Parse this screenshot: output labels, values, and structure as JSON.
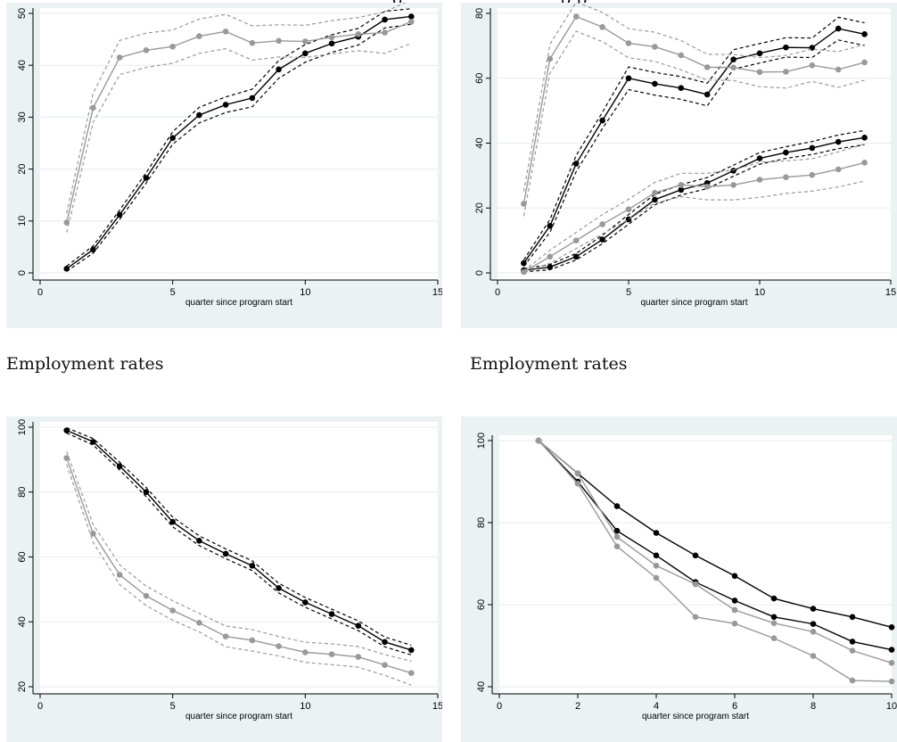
{
  "page": {
    "captions": [
      "Employment rates",
      "Employment rates"
    ],
    "top_fragment_left": "g",
    "top_fragment_right": "p p"
  },
  "colors": {
    "panel_bg": "#eaf2f3",
    "black_series": "#000000",
    "gray_series": "#999999"
  },
  "chart_data": [
    {
      "type": "line",
      "xlabel": "quarter since program start",
      "xlim": [
        0,
        15
      ],
      "ylim": [
        0,
        50
      ],
      "xticks": [
        0,
        5,
        10,
        15
      ],
      "yticks": [
        0,
        10,
        20,
        30,
        40,
        50
      ],
      "grid": true,
      "legend": "none",
      "x": [
        1,
        2,
        3,
        4,
        5,
        6,
        7,
        8,
        9,
        10,
        11,
        12,
        13,
        14
      ],
      "series": [
        {
          "color": "black",
          "markers": true,
          "ci": true,
          "values": [
            0.8,
            4.5,
            11.2,
            18.3,
            26,
            30.4,
            32.4,
            33.7,
            39.2,
            42.3,
            44.2,
            45.5,
            48.8,
            49.4
          ],
          "lower": [
            0.3,
            3.8,
            10.3,
            17.3,
            24.8,
            28.9,
            30.9,
            32,
            37.5,
            40.6,
            42.5,
            43.9,
            47.2,
            47.9
          ],
          "upper": [
            1.3,
            5.2,
            12.1,
            19.3,
            27.2,
            31.9,
            33.9,
            35.4,
            40.9,
            44,
            45.9,
            47.1,
            50.4,
            50.9
          ]
        },
        {
          "color": "gray",
          "markers": true,
          "ci": true,
          "values": [
            9.7,
            31.8,
            41.5,
            42.9,
            43.6,
            45.6,
            46.5,
            44.3,
            44.7,
            44.6,
            45.4,
            46.0,
            46.3,
            48.4
          ],
          "lower": [
            7.8,
            29,
            38.2,
            39.6,
            40.4,
            42.3,
            43.2,
            41.0,
            41.6,
            41.5,
            42.2,
            42.8,
            42.3,
            44.2
          ],
          "upper": [
            11.5,
            34.6,
            44.8,
            46.2,
            46.8,
            48.9,
            49.8,
            47.6,
            47.8,
            47.7,
            48.6,
            49.2,
            50.3,
            52.6
          ]
        }
      ]
    },
    {
      "type": "line",
      "xlabel": "quarter since program start",
      "xlim": [
        0,
        15
      ],
      "ylim": [
        0,
        80
      ],
      "xticks": [
        0,
        5,
        10,
        15
      ],
      "yticks": [
        0,
        20,
        40,
        60,
        80
      ],
      "grid": true,
      "legend": "none",
      "x": [
        1,
        2,
        3,
        4,
        5,
        6,
        7,
        8,
        9,
        10,
        11,
        12,
        13,
        14
      ],
      "series": [
        {
          "color": "black",
          "markers": true,
          "ci": true,
          "values": [
            3,
            14.5,
            33.7,
            47,
            60,
            58.3,
            57,
            55,
            65.8,
            67.7,
            69.5,
            69.4,
            75.3,
            73.6
          ],
          "lower": [
            2,
            12.5,
            31.2,
            44.5,
            56.5,
            54.8,
            53.5,
            51.5,
            62.8,
            64.7,
            66.5,
            66.4,
            71.8,
            70.1
          ],
          "upper": [
            4,
            16.5,
            36.2,
            49.5,
            63.5,
            61.8,
            60.5,
            58.5,
            68.8,
            70.7,
            72.5,
            72.4,
            78.8,
            77.1
          ]
        },
        {
          "color": "gray",
          "markers": true,
          "ci": true,
          "values": [
            21.3,
            66,
            79,
            75.8,
            70.8,
            69.7,
            67.1,
            63.4,
            63.3,
            61.9,
            62,
            64,
            62.7,
            64.9
          ],
          "lower": [
            17.5,
            61.5,
            74.5,
            71.3,
            66.3,
            65.2,
            62.6,
            59.4,
            59.3,
            57.4,
            57,
            59,
            57.2,
            59.4
          ],
          "upper": [
            25.1,
            70.5,
            83.5,
            80.3,
            75.3,
            74.2,
            71.6,
            67.4,
            67.3,
            66.4,
            67,
            69,
            68.2,
            70.4
          ]
        },
        {
          "color": "black",
          "markers": true,
          "ci": true,
          "values": [
            0.8,
            1.8,
            5,
            10.3,
            16.5,
            22.6,
            25.6,
            27.7,
            31.5,
            35.3,
            37.1,
            38.5,
            40.4,
            41.7
          ],
          "lower": [
            0.3,
            1,
            4,
            9,
            15,
            21,
            24,
            26,
            29.8,
            33.5,
            35.3,
            36.5,
            38.3,
            39.5
          ],
          "upper": [
            1.3,
            2.6,
            6,
            11.6,
            18,
            24.2,
            27.2,
            29.4,
            33.2,
            37.1,
            38.9,
            40.5,
            42.5,
            43.9
          ]
        },
        {
          "color": "gray",
          "markers": true,
          "ci": true,
          "values": [
            0.3,
            5,
            10,
            15,
            19.6,
            24.7,
            27.1,
            26.6,
            27.1,
            28.7,
            29.5,
            30.2,
            31.9,
            34
          ],
          "lower": [
            0,
            3,
            7.5,
            12,
            16.5,
            21.5,
            23.5,
            22.5,
            22.5,
            23.3,
            24.5,
            25.2,
            26.5,
            28.3
          ],
          "upper": [
            0.6,
            7,
            12.5,
            18,
            22.7,
            27.9,
            30.7,
            30.7,
            31.7,
            34.1,
            34.5,
            35.2,
            37.3,
            39.7
          ]
        }
      ]
    },
    {
      "type": "line",
      "xlabel": "quarter since program start",
      "xlim": [
        0,
        15
      ],
      "ylim": [
        20,
        100
      ],
      "xticks": [
        0,
        5,
        10,
        15
      ],
      "yticks": [
        20,
        40,
        60,
        80,
        100
      ],
      "grid": true,
      "legend": "none",
      "x": [
        1,
        2,
        3,
        4,
        5,
        6,
        7,
        8,
        9,
        10,
        11,
        12,
        13,
        14
      ],
      "series": [
        {
          "color": "black",
          "markers": true,
          "ci": true,
          "values": [
            99,
            95.5,
            88,
            80,
            70.8,
            65,
            61,
            57.3,
            50.4,
            46,
            42.4,
            38.8,
            33.8,
            31.3
          ],
          "lower": [
            98.2,
            94.5,
            86.8,
            78.6,
            69.3,
            63.5,
            59.5,
            55.8,
            48.9,
            44.5,
            40.9,
            37.3,
            32.3,
            29.8
          ],
          "upper": [
            99.8,
            96.5,
            89.2,
            81.4,
            72.3,
            66.5,
            62.5,
            58.8,
            51.9,
            47.5,
            43.9,
            40.3,
            35.3,
            32.8
          ]
        },
        {
          "color": "gray",
          "markers": true,
          "ci": true,
          "values": [
            90.5,
            67.2,
            54.5,
            48,
            43.5,
            39.7,
            35.5,
            34.3,
            32.5,
            30.6,
            30,
            29.2,
            26.7,
            24.2
          ],
          "lower": [
            88.5,
            64.5,
            51.5,
            45,
            40.5,
            36.9,
            32.3,
            31,
            29.5,
            27.5,
            26.8,
            26,
            23.5,
            20.5
          ],
          "upper": [
            92.5,
            70,
            57.6,
            51,
            46.5,
            42.6,
            38.7,
            37.6,
            35.5,
            33.7,
            33.2,
            32.4,
            29.9,
            27.9
          ]
        }
      ]
    },
    {
      "type": "line",
      "xlabel": "quarter since program start",
      "xlim": [
        0,
        10
      ],
      "ylim": [
        40,
        100
      ],
      "xticks": [
        0,
        2,
        4,
        6,
        8,
        10
      ],
      "yticks": [
        40,
        60,
        80,
        100
      ],
      "grid": true,
      "legend": "none",
      "x": [
        1,
        2,
        3,
        4,
        5,
        6,
        7,
        8,
        9,
        10
      ],
      "series": [
        {
          "color": "black",
          "markers": true,
          "ci": false,
          "values": [
            100,
            92,
            84,
            77.5,
            72,
            67,
            61.5,
            59,
            57,
            54.5
          ]
        },
        {
          "color": "black",
          "markers": true,
          "ci": false,
          "values": [
            100,
            90,
            78,
            72,
            65.5,
            61,
            57,
            55.3,
            51,
            49
          ]
        },
        {
          "color": "gray",
          "markers": true,
          "ci": false,
          "values": [
            100,
            92,
            76.5,
            69.5,
            65,
            58.7,
            55.5,
            53.4,
            48.8,
            45.8
          ]
        },
        {
          "color": "gray",
          "markers": true,
          "ci": false,
          "values": [
            100,
            89.5,
            74.2,
            66.5,
            57,
            55.4,
            51.8,
            47.5,
            41.5,
            41.3
          ]
        }
      ]
    }
  ]
}
